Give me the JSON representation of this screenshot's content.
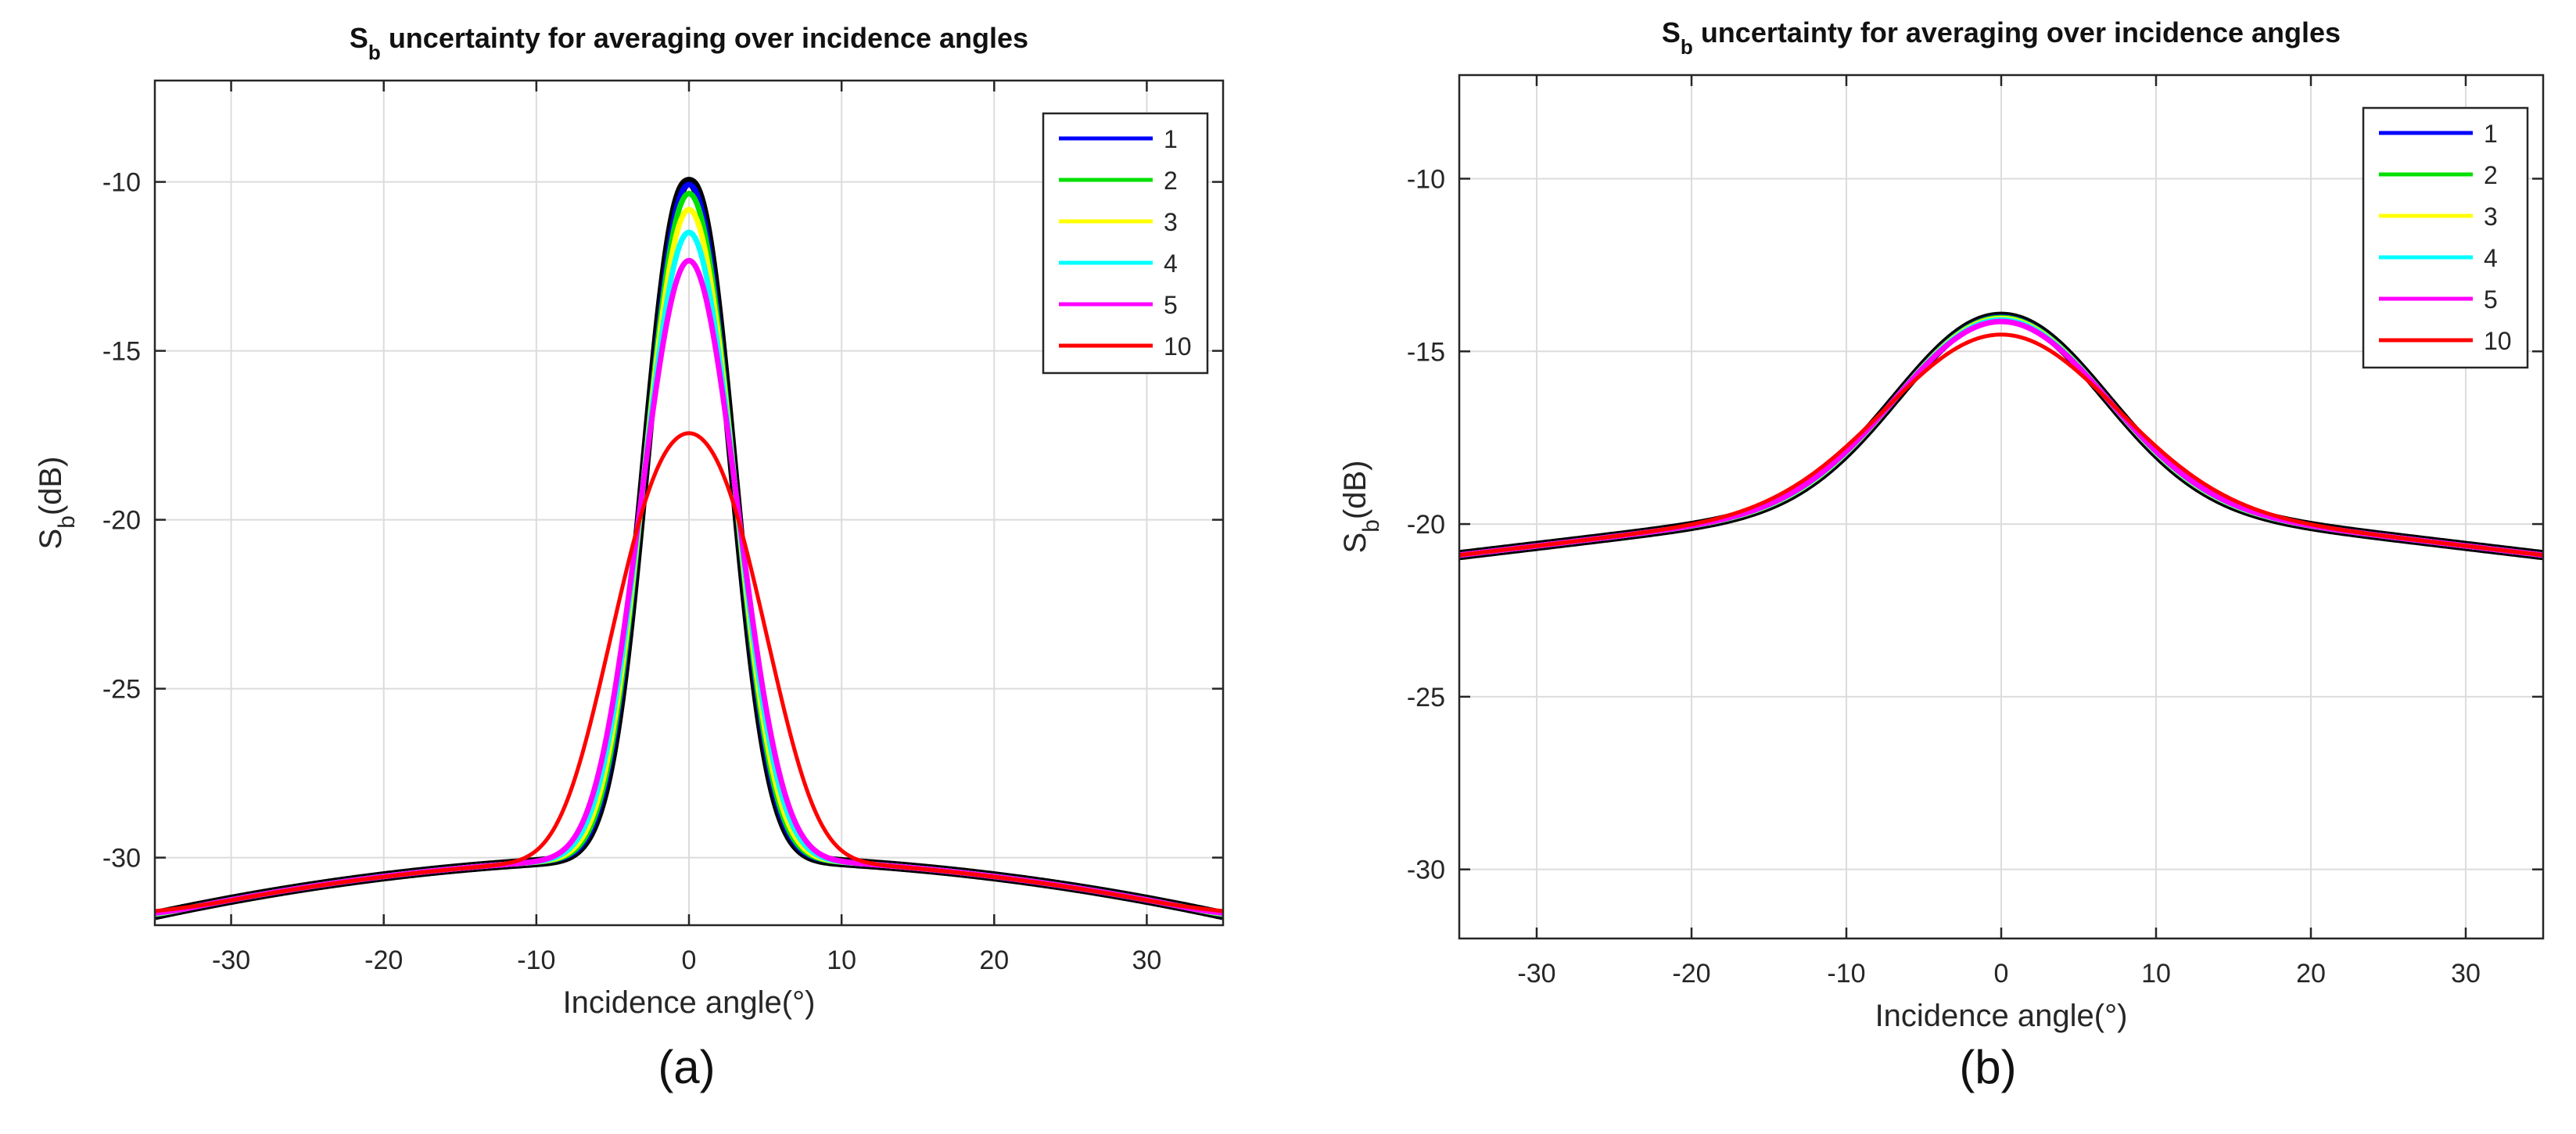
{
  "figure": {
    "caption_a": "(a)",
    "caption_b": "(b)",
    "colors": {
      "1": "#0000ff",
      "2": "#00e000",
      "3": "#ffff00",
      "4": "#00ffff",
      "5": "#ff00ff",
      "10": "#ff0000",
      "reference": "#000000",
      "grid": "#dcdcdc",
      "axis": "#262626"
    }
  },
  "chart_data": [
    {
      "id": "a",
      "type": "line",
      "title": "S",
      "title_subscript": "b",
      "title_rest": " uncertainty for averaging over incidence angles",
      "xlabel": "Incidence angle(°)",
      "ylabel_main": "S",
      "ylabel_sub": "b",
      "ylabel_rest": "(dB)",
      "xlim": [
        -35,
        35
      ],
      "ylim": [
        -32,
        -7
      ],
      "xticks": [
        -30,
        -20,
        -10,
        0,
        10,
        20,
        30
      ],
      "yticks": [
        -10,
        -15,
        -20,
        -25,
        -30
      ],
      "grid": true,
      "legend_position": "top-right",
      "legend": [
        "1",
        "2",
        "3",
        "4",
        "5",
        "10"
      ],
      "series": [
        {
          "name": "1",
          "width_deg": 1
        },
        {
          "name": "2",
          "width_deg": 2
        },
        {
          "name": "3",
          "width_deg": 3
        },
        {
          "name": "4",
          "width_deg": 4
        },
        {
          "name": "5",
          "width_deg": 5
        },
        {
          "name": "10",
          "width_deg": 10
        }
      ],
      "reference_curve": {
        "peak_db": -10,
        "floor_db_at_0": -30,
        "floor_db_at_35": -31.7,
        "sigma_deg": 3.8,
        "shape_exponent": 2.2
      }
    },
    {
      "id": "b",
      "type": "line",
      "title": "S",
      "title_subscript": "b",
      "title_rest": " uncertainty for averaging over incidence angles",
      "xlabel": "Incidence angle(°)",
      "ylabel_main": "S",
      "ylabel_sub": "b",
      "ylabel_rest": "(dB)",
      "xlim": [
        -35,
        35
      ],
      "ylim": [
        -32,
        -7
      ],
      "xticks": [
        -30,
        -20,
        -10,
        0,
        10,
        20,
        30
      ],
      "yticks": [
        -10,
        -15,
        -20,
        -25,
        -30
      ],
      "grid": true,
      "legend_position": "top-right",
      "legend": [
        "1",
        "2",
        "3",
        "4",
        "5",
        "10"
      ],
      "series": [
        {
          "name": "1",
          "width_deg": 1
        },
        {
          "name": "2",
          "width_deg": 2
        },
        {
          "name": "3",
          "width_deg": 3
        },
        {
          "name": "4",
          "width_deg": 4
        },
        {
          "name": "5",
          "width_deg": 5
        },
        {
          "name": "10",
          "width_deg": 10
        }
      ],
      "reference_curve": {
        "peak_db": -14,
        "floor_db_at_20": -20.1,
        "floor_db_at_35": -20.9,
        "sigma_deg": 9.0,
        "shape_exponent": 2.0
      }
    }
  ]
}
